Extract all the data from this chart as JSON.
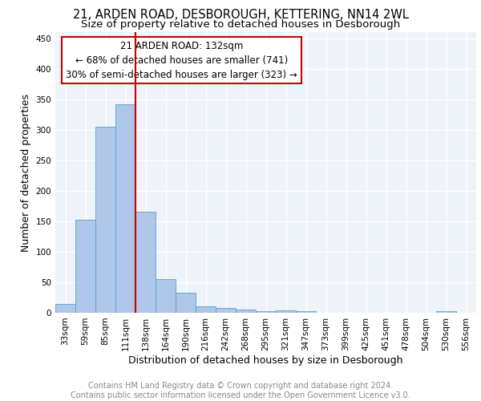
{
  "title": "21, ARDEN ROAD, DESBOROUGH, KETTERING, NN14 2WL",
  "subtitle": "Size of property relative to detached houses in Desborough",
  "xlabel": "Distribution of detached houses by size in Desborough",
  "ylabel": "Number of detached properties",
  "footer_line1": "Contains HM Land Registry data © Crown copyright and database right 2024.",
  "footer_line2": "Contains public sector information licensed under the Open Government Licence v3.0.",
  "annotation_line1": "21 ARDEN ROAD: 132sqm",
  "annotation_line2": "← 68% of detached houses are smaller (741)",
  "annotation_line3": "30% of semi-detached houses are larger (323) →",
  "bar_labels": [
    "33sqm",
    "59sqm",
    "85sqm",
    "111sqm",
    "138sqm",
    "164sqm",
    "190sqm",
    "216sqm",
    "242sqm",
    "268sqm",
    "295sqm",
    "321sqm",
    "347sqm",
    "373sqm",
    "399sqm",
    "425sqm",
    "451sqm",
    "478sqm",
    "504sqm",
    "530sqm",
    "556sqm"
  ],
  "bar_values": [
    15,
    152,
    305,
    342,
    165,
    55,
    33,
    10,
    8,
    5,
    2,
    4,
    3,
    0,
    0,
    0,
    0,
    0,
    0,
    3,
    0
  ],
  "bar_color": "#aec6e8",
  "bar_edge_color": "#5a9fd4",
  "vline_color": "#cc0000",
  "vline_x": 3.5,
  "ylim": [
    0,
    460
  ],
  "yticks": [
    0,
    50,
    100,
    150,
    200,
    250,
    300,
    350,
    400,
    450
  ],
  "background_color": "#eef2f9",
  "grid_color": "#ffffff",
  "title_fontsize": 10.5,
  "subtitle_fontsize": 9.5,
  "axis_label_fontsize": 9,
  "tick_fontsize": 7.5,
  "footer_fontsize": 7,
  "annotation_fontsize": 8.5
}
